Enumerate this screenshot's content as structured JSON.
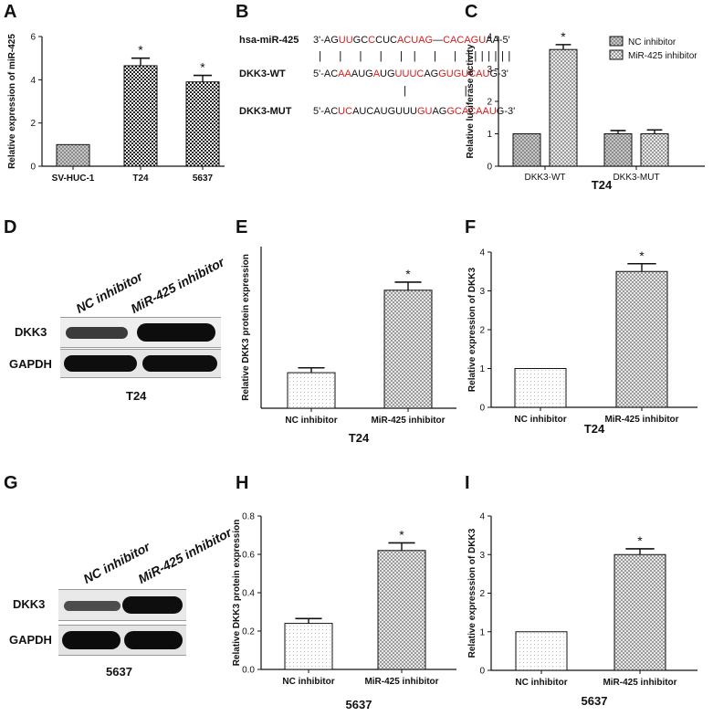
{
  "panels": {
    "A": "A",
    "B": "B",
    "C": "C",
    "D": "D",
    "E": "E",
    "F": "F",
    "G": "G",
    "H": "H",
    "I": "I"
  },
  "colors": {
    "red": "#d61c1c",
    "bar_edge": "#111111"
  },
  "sequences": {
    "mir_label": "hsa-miR-425",
    "wt_label": "DKK3-WT",
    "mut_label": "DKK3-MUT",
    "mir_seq": [
      {
        "t": "3'-AG",
        "r": false
      },
      {
        "t": "UU",
        "r": true
      },
      {
        "t": "GC",
        "r": false
      },
      {
        "t": "C",
        "r": true
      },
      {
        "t": "CUC",
        "r": false
      },
      {
        "t": "AC",
        "r": true
      },
      {
        "t": "UAG",
        "r": true
      },
      {
        "t": "—",
        "r": false
      },
      {
        "t": "CACAGU",
        "r": true
      },
      {
        "t": "AA-5'",
        "r": false
      }
    ],
    "wt_seq": [
      {
        "t": "5'-AC",
        "r": false
      },
      {
        "t": "AA",
        "r": true
      },
      {
        "t": "AUG",
        "r": false
      },
      {
        "t": "A",
        "r": true
      },
      {
        "t": "UG",
        "r": false
      },
      {
        "t": "UU",
        "r": true
      },
      {
        "t": "UC",
        "r": true
      },
      {
        "t": "AG",
        "r": false
      },
      {
        "t": "GUGUCAU",
        "r": true
      },
      {
        "t": "G-3'",
        "r": false
      }
    ],
    "mut_seq": [
      {
        "t": "5'-AC",
        "r": false
      },
      {
        "t": "UC",
        "r": true
      },
      {
        "t": "AUCAUGUUU",
        "r": false
      },
      {
        "t": "GU",
        "r": true
      },
      {
        "t": "AG",
        "r": false
      },
      {
        "t": "GCACAAU",
        "r": true
      },
      {
        "t": "G-3'",
        "r": false
      }
    ],
    "pipes_mir_wt": "|  |  |  |  | |  |  | |||||||",
    "pipes_wt_mut": "|        |"
  },
  "western": {
    "D": {
      "lanes": [
        "NC inhibitor",
        "MiR-425 inhibitor"
      ],
      "rows": [
        "DKK3",
        "GAPDH"
      ],
      "caption": "T24"
    },
    "G": {
      "lanes": [
        "NC inhibitor",
        "MiR-425 inhibitor"
      ],
      "rows": [
        "DKK3",
        "GAPDH"
      ],
      "caption": "5637"
    }
  },
  "chart_data": [
    {
      "id": "A",
      "type": "bar",
      "categories": [
        "SV-HUC-1",
        "T24",
        "5637"
      ],
      "values": [
        1.0,
        4.65,
        3.9
      ],
      "errors": [
        0,
        0.35,
        0.3
      ],
      "patterns": [
        "gray",
        "dense",
        "dense"
      ],
      "significance": [
        "",
        "*",
        "*"
      ],
      "xlabel": "",
      "ylabel": "Relative expression of miR-425",
      "ylim": [
        0,
        6
      ],
      "yticks": [
        0,
        2,
        4,
        6
      ]
    },
    {
      "id": "C",
      "type": "bar",
      "categories": [
        "DKK3-WT",
        "DKK3-MUT"
      ],
      "series": [
        {
          "name": "NC inhibitor",
          "values": [
            1.0,
            1.0
          ],
          "errors": [
            0,
            0.1
          ],
          "pattern": "gray"
        },
        {
          "name": "MiR-425 inhibitor",
          "values": [
            3.6,
            1.0
          ],
          "errors": [
            0.15,
            0.12
          ],
          "pattern": "check"
        }
      ],
      "significance": [
        "*",
        ""
      ],
      "xlabel": "T24",
      "ylabel": "Relative luciferase activity",
      "ylim": [
        0,
        4
      ],
      "yticks": [
        0,
        1,
        2,
        3,
        4
      ],
      "legend": "top-right"
    },
    {
      "id": "E",
      "type": "bar",
      "categories": [
        "NC inhibitor",
        "MiR-425 inhibitor"
      ],
      "values": [
        0.22,
        0.73
      ],
      "errors": [
        0.03,
        0.05
      ],
      "patterns": [
        "dots",
        "check"
      ],
      "significance": [
        "",
        "*"
      ],
      "xlabel": "T24",
      "ylabel": "Relative DKK3 protein expression",
      "ylim": [
        0,
        1.0
      ],
      "yticks": [],
      "ytick_labels": false
    },
    {
      "id": "F",
      "type": "bar",
      "categories": [
        "NC inhibitor",
        "MiR-425 inhibitor"
      ],
      "values": [
        1.0,
        3.5
      ],
      "errors": [
        0,
        0.2
      ],
      "patterns": [
        "dots",
        "check"
      ],
      "significance": [
        "",
        "*"
      ],
      "xlabel": "T24",
      "ylabel": "Relative expression of DKK3",
      "ylim": [
        0,
        4
      ],
      "yticks": [
        0,
        1,
        2,
        3,
        4
      ]
    },
    {
      "id": "H",
      "type": "bar",
      "categories": [
        "NC inhibitor",
        "MiR-425 inhibitor"
      ],
      "values": [
        0.24,
        0.62
      ],
      "errors": [
        0.025,
        0.04
      ],
      "patterns": [
        "dots",
        "check"
      ],
      "significance": [
        "",
        "*"
      ],
      "xlabel": "5637",
      "ylabel": "Relative DKK3 protein expression",
      "ylim": [
        0,
        0.8
      ],
      "yticks": [
        0.0,
        0.2,
        0.4,
        0.6,
        0.8
      ]
    },
    {
      "id": "I",
      "type": "bar",
      "categories": [
        "NC inhibitor",
        "MiR-425 inhibitor"
      ],
      "values": [
        1.0,
        3.0
      ],
      "errors": [
        0,
        0.15
      ],
      "patterns": [
        "dots",
        "check"
      ],
      "significance": [
        "",
        "*"
      ],
      "xlabel": "5637",
      "ylabel": "Relative expresssion of DKK3",
      "ylim": [
        0,
        4
      ],
      "yticks": [
        0,
        1,
        2,
        3,
        4
      ]
    }
  ]
}
